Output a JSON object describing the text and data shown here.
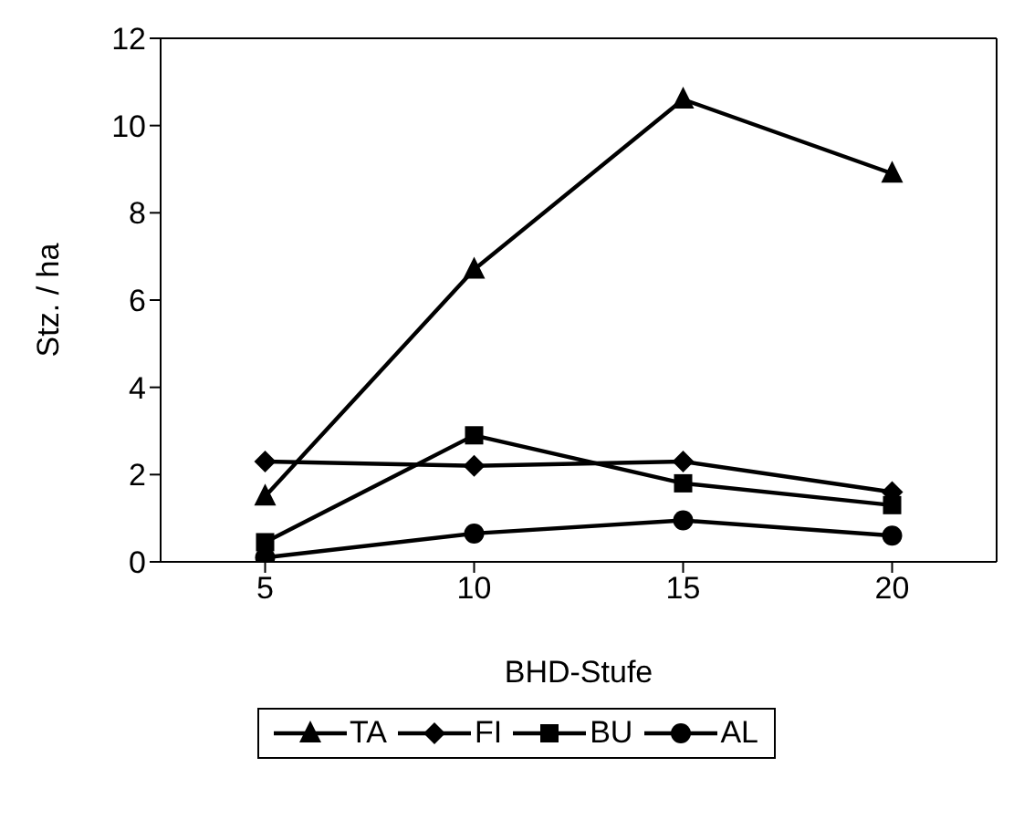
{
  "chart_data": {
    "type": "line",
    "xlabel": "BHD-Stufe",
    "ylabel": "Stz. / ha",
    "categories": [
      "5",
      "10",
      "15",
      "20"
    ],
    "series": [
      {
        "name": "TA",
        "color": "#000000",
        "marker": "triangle",
        "values": [
          1.5,
          6.7,
          10.6,
          8.9
        ]
      },
      {
        "name": "FI",
        "color": "#000000",
        "marker": "diamond",
        "values": [
          2.3,
          2.2,
          2.3,
          1.6
        ]
      },
      {
        "name": "BU",
        "color": "#000000",
        "marker": "square",
        "values": [
          0.45,
          2.9,
          1.8,
          1.3
        ]
      },
      {
        "name": "AL",
        "color": "#000000",
        "marker": "circle",
        "values": [
          0.1,
          0.65,
          0.95,
          0.6
        ]
      }
    ],
    "ylim": [
      0,
      12
    ],
    "yticks": [
      0,
      2,
      4,
      6,
      8,
      10,
      12
    ],
    "grid": false,
    "legend": "bottom",
    "line_style": "solid"
  }
}
